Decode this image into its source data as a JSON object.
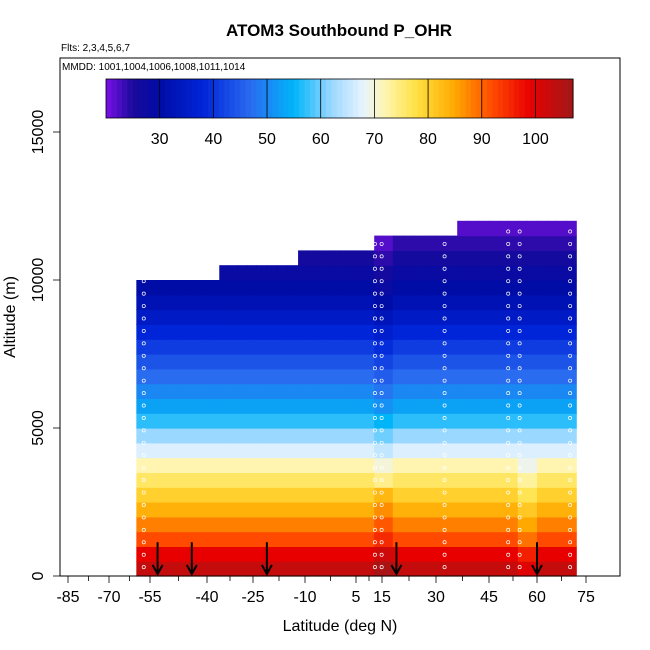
{
  "chart_data": {
    "type": "heatmap",
    "title": "ATOM3 Southbound P_OHR",
    "flights_note": "Flts: 2,3,4,5,6,7",
    "dates_note": "MMDD: 1001,1004,1006,1008,1011,1014",
    "xlabel": "Latitude (deg N)",
    "ylabel": "Altitude (m)",
    "xlim": [
      -85,
      85
    ],
    "ylim": [
      0,
      17500
    ],
    "x_tick_labels": [
      "-85",
      "-70",
      "-55",
      "-40",
      "-25",
      "-10",
      "5",
      "15",
      "30",
      "45",
      "60",
      "75"
    ],
    "x_tick_values": [
      -85,
      -70,
      -55,
      -40,
      -25,
      -10,
      5,
      15,
      30,
      45,
      60,
      75
    ],
    "y_ticks": [
      0,
      5000,
      10000,
      15000
    ],
    "y_tick_labels": [
      "0",
      "5000",
      "10000",
      "15000"
    ],
    "colorbar": {
      "range": [
        20,
        107
      ],
      "tick_values": [
        30,
        40,
        50,
        60,
        70,
        80,
        90,
        100
      ],
      "tick_labels": [
        "30",
        "40",
        "50",
        "60",
        "70",
        "80",
        "90",
        "100"
      ]
    },
    "altitude_profile_values_by_band": [
      {
        "alt_range": [
          0,
          500
        ],
        "value": 103
      },
      {
        "alt_range": [
          500,
          1000
        ],
        "value": 99
      },
      {
        "alt_range": [
          1000,
          1500
        ],
        "value": 92
      },
      {
        "alt_range": [
          1500,
          2000
        ],
        "value": 88
      },
      {
        "alt_range": [
          2000,
          2500
        ],
        "value": 84
      },
      {
        "alt_range": [
          2500,
          3000
        ],
        "value": 80
      },
      {
        "alt_range": [
          3000,
          3500
        ],
        "value": 76
      },
      {
        "alt_range": [
          3500,
          4000
        ],
        "value": 72
      },
      {
        "alt_range": [
          4000,
          4500
        ],
        "value": 67
      },
      {
        "alt_range": [
          4500,
          5000
        ],
        "value": 62
      },
      {
        "alt_range": [
          5000,
          5500
        ],
        "value": 57
      },
      {
        "alt_range": [
          5500,
          6000
        ],
        "value": 53
      },
      {
        "alt_range": [
          6000,
          6500
        ],
        "value": 50
      },
      {
        "alt_range": [
          6500,
          7000
        ],
        "value": 47
      },
      {
        "alt_range": [
          7000,
          7500
        ],
        "value": 44
      },
      {
        "alt_range": [
          7500,
          8000
        ],
        "value": 41
      },
      {
        "alt_range": [
          8000,
          8500
        ],
        "value": 38
      },
      {
        "alt_range": [
          8500,
          9000
        ],
        "value": 35
      },
      {
        "alt_range": [
          9000,
          9500
        ],
        "value": 32
      },
      {
        "alt_range": [
          9500,
          10000
        ],
        "value": 30
      },
      {
        "alt_range": [
          10000,
          10500
        ],
        "value": 28
      },
      {
        "alt_range": [
          10500,
          11000
        ],
        "value": 26
      },
      {
        "alt_range": [
          11000,
          11500
        ],
        "value": 24
      },
      {
        "alt_range": [
          11500,
          12000
        ],
        "value": 22
      }
    ],
    "data_lat_range": [
      -60,
      72
    ],
    "top_steps": [
      {
        "lat_range": [
          -60,
          -37
        ],
        "top_alt": 10000
      },
      {
        "lat_range": [
          -37,
          -12
        ],
        "top_alt": 10500
      },
      {
        "lat_range": [
          -12,
          13
        ],
        "top_alt": 11000
      },
      {
        "lat_range": [
          13,
          37
        ],
        "top_alt": 11500
      },
      {
        "lat_range": [
          37,
          72
        ],
        "top_alt": 12000
      }
    ],
    "profile_arrows_lat": [
      -53,
      -44,
      -21,
      19,
      60
    ]
  }
}
